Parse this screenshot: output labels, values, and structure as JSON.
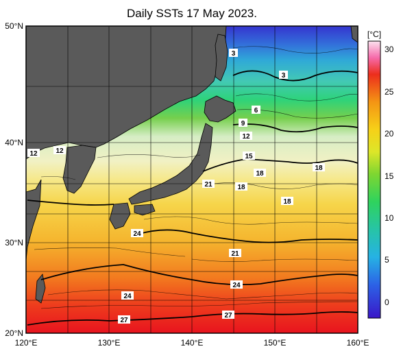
{
  "title": "Daily SSTs 17 May 2023.",
  "colorbar": {
    "unit": "[°C]",
    "tick_labels": [
      "30",
      "25",
      "20",
      "15",
      "10",
      "5",
      "0"
    ],
    "range": [
      -2,
      32
    ]
  },
  "axes": {
    "lat_labels": [
      "50°N",
      "40°N",
      "30°N",
      "20°N"
    ],
    "lon_labels": [
      "120°E",
      "130°E",
      "140°E",
      "150°E",
      "160°E"
    ]
  },
  "map": {
    "extent": {
      "lon": [
        120,
        160
      ],
      "lat": [
        20,
        50
      ]
    },
    "land_color": "#5a5a5a",
    "grid": true
  },
  "contour_labels": [
    "3",
    "3",
    "6",
    "9",
    "12",
    "12",
    "12",
    "15",
    "18",
    "18",
    "18",
    "18",
    "21",
    "21",
    "24",
    "24",
    "24",
    "27",
    "27"
  ],
  "colors": {
    "cold": "#3c2ce0",
    "cool": "#3ed2e8",
    "mid": "#3fdb3f",
    "mild": "#f2f1b8",
    "warm": "#f5c21c",
    "hot": "#ee2a16",
    "hottest": "#ff7fcf"
  }
}
